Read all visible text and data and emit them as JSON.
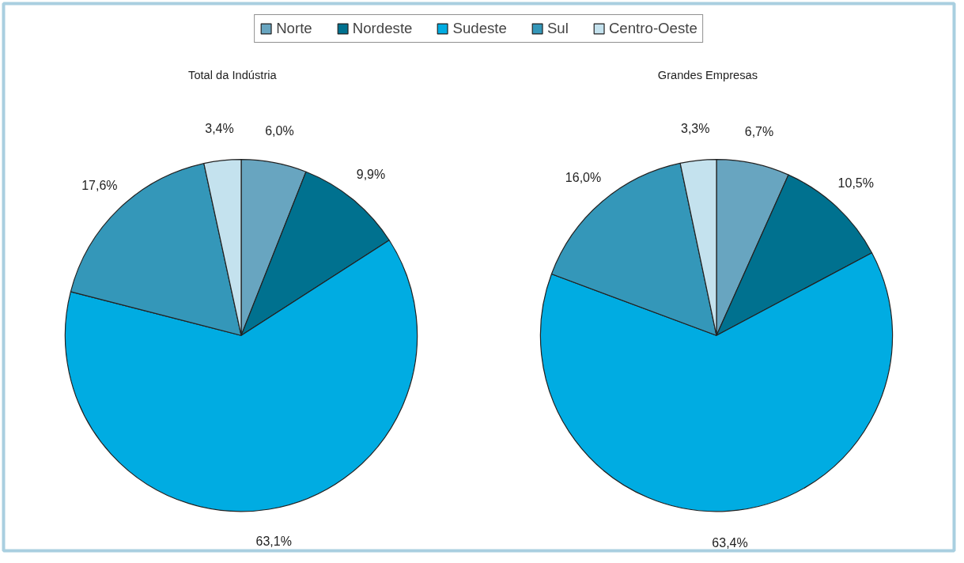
{
  "chart_data": [
    {
      "type": "pie",
      "title": "Total da Indústria",
      "legend": "top",
      "categories": [
        "Norte",
        "Nordeste",
        "Sudeste",
        "Sul",
        "Centro-Oeste"
      ],
      "values": [
        6.0,
        9.9,
        63.1,
        17.6,
        3.4
      ],
      "value_labels": [
        "6,0%",
        "9,9%",
        "63,1%",
        "17,6%",
        "3,4%"
      ],
      "colors": [
        "#68a5c0",
        "#00718f",
        "#00ace2",
        "#3497b9",
        "#c4e2ee"
      ]
    },
    {
      "type": "pie",
      "title": "Grandes Empresas",
      "values": [
        6.7,
        10.5,
        63.4,
        16.0,
        3.3
      ],
      "value_labels": [
        "6,7%",
        "10,5%",
        "63,4%",
        "16,0%",
        "3,3%"
      ],
      "colors": [
        "#68a5c0",
        "#00718f",
        "#00ace2",
        "#3497b9",
        "#c4e2ee"
      ]
    }
  ]
}
